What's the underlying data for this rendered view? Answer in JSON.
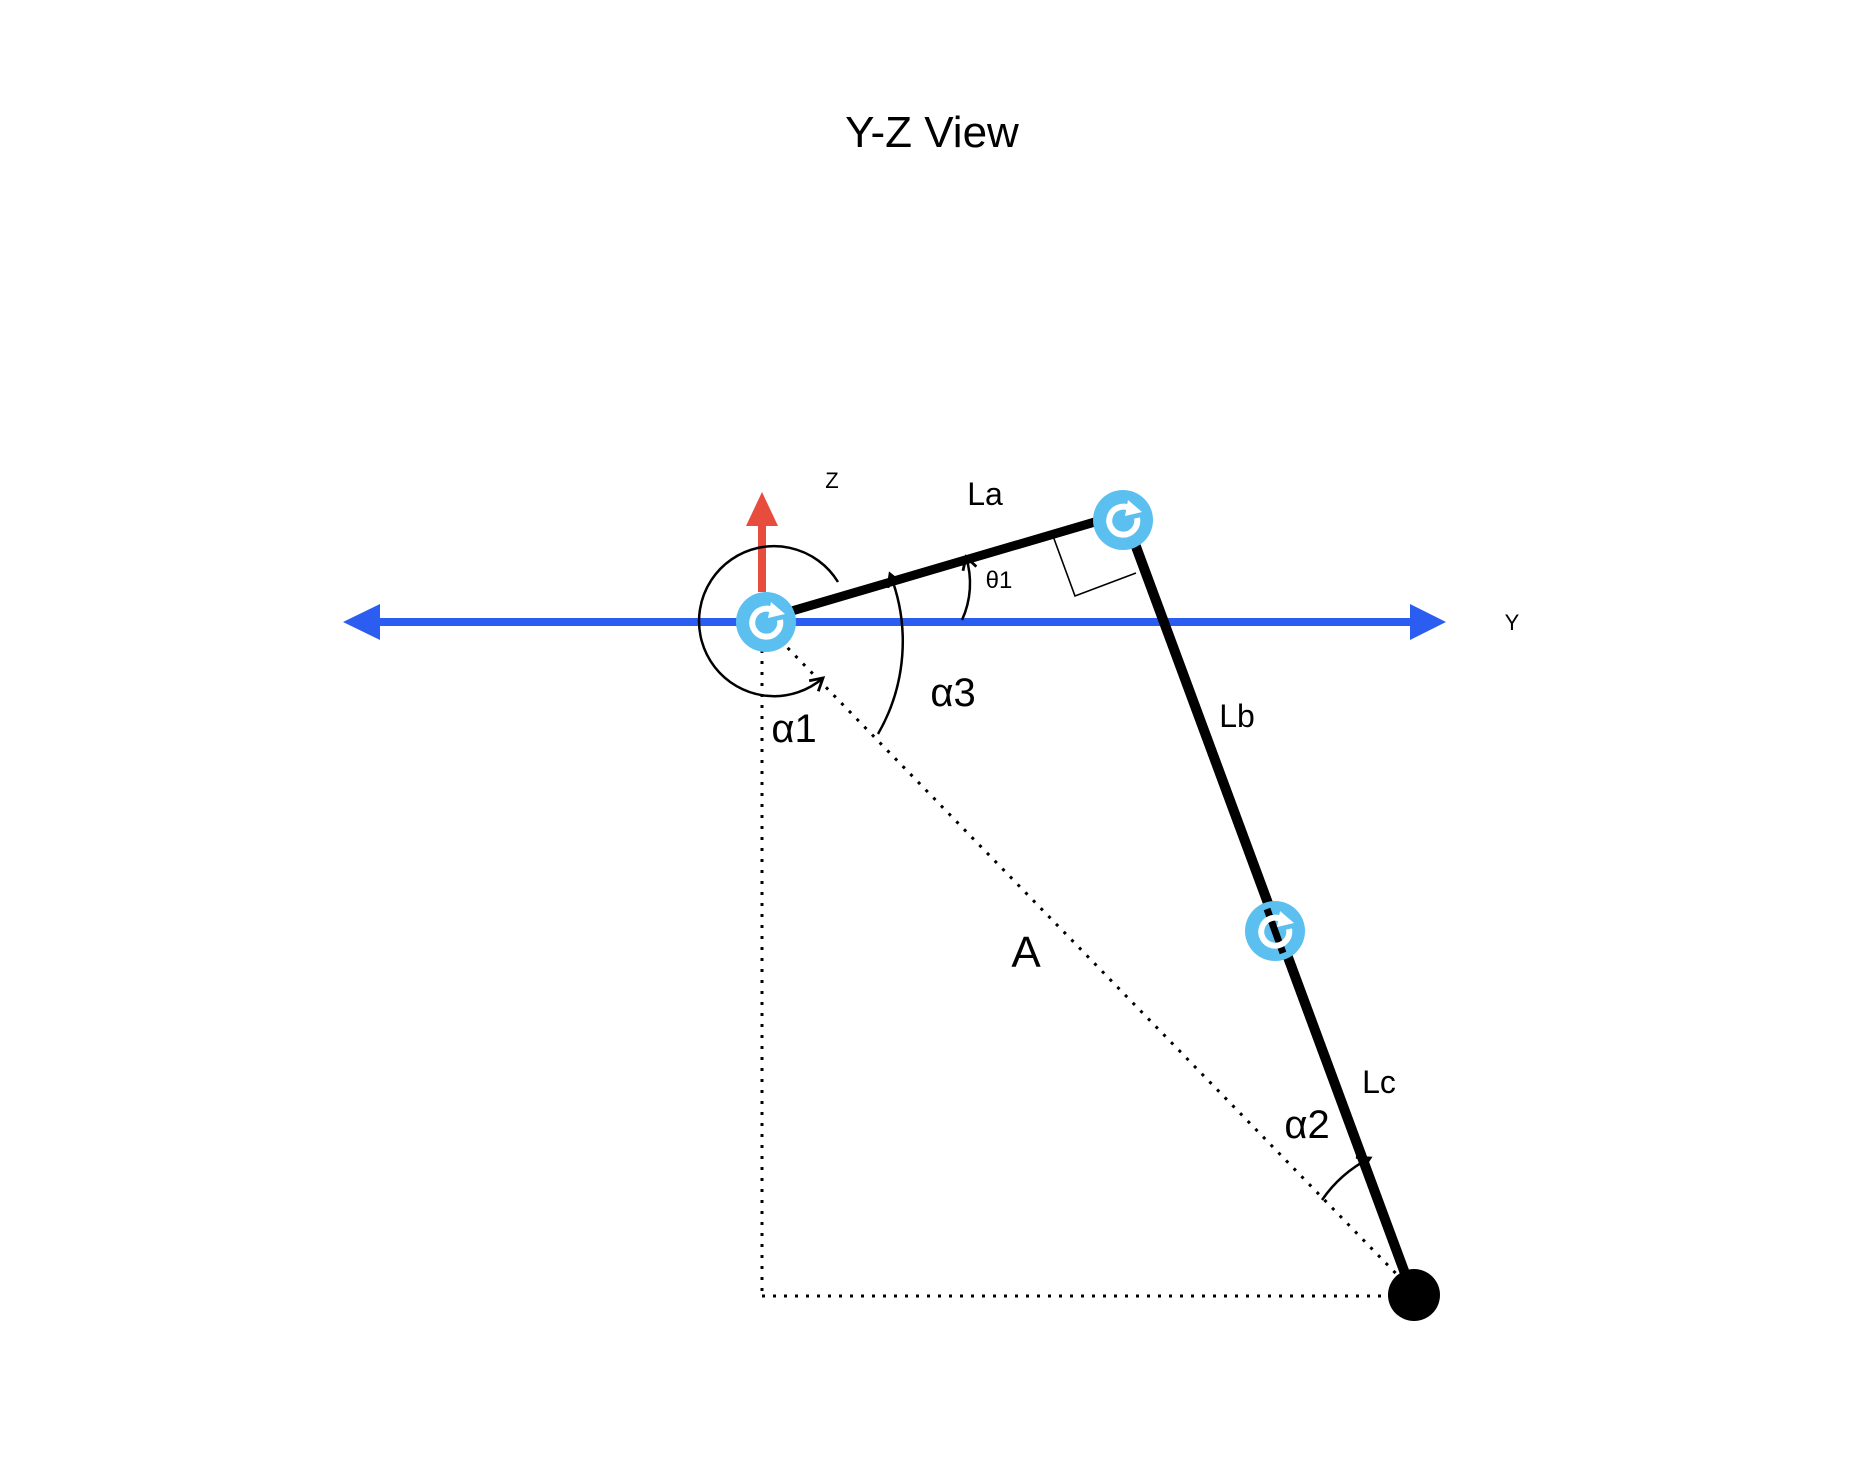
{
  "title": "Y-Z View",
  "axes": {
    "y_label": "Y",
    "z_label": "Z",
    "colors": {
      "y_axis": "#2b5ef0",
      "z_axis": "#e74c3c"
    }
  },
  "links": {
    "la": "La",
    "lb": "Lb",
    "lc": "Lc"
  },
  "angles": {
    "theta1": "θ1",
    "alpha1": "α1",
    "alpha2": "α2",
    "alpha3": "α3"
  },
  "distance_label": "A",
  "colors": {
    "joint": "#5bc0f0",
    "joint_symbol": "#ffffff",
    "link": "#000000",
    "end_effector": "#000000"
  },
  "icons": {
    "joint": "rotation-joint-icon",
    "end_effector": "end-effector-dot-icon"
  }
}
